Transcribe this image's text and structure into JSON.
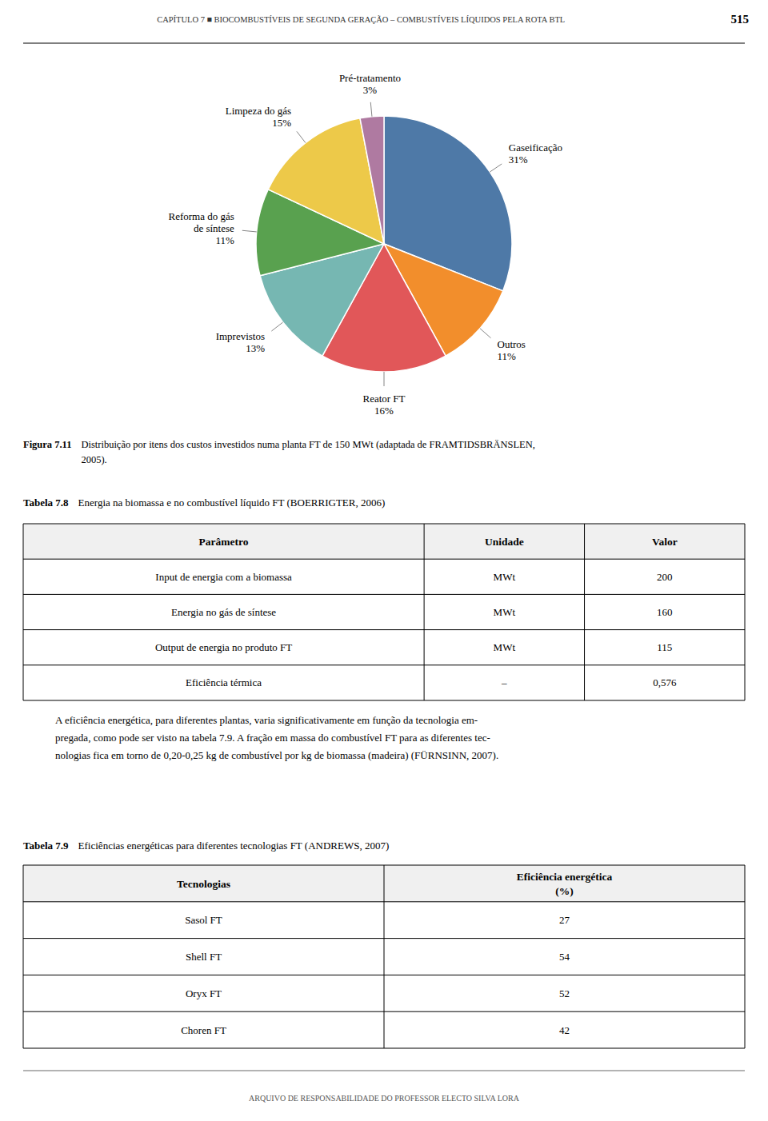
{
  "page_title": "CAPÍTULO 7  ■  BIOCOMBUSTÍVEIS DE SEGUNDA GERAÇÃO – COMBUSTÍVEIS LÍQUIDOS PELA ROTA BTL",
  "page_number": "515",
  "chart_data": {
    "type": "pie",
    "categories": [
      "Gaseificação",
      "Outros",
      "Reator FT",
      "Imprevistos",
      "Reforma do gás\nde síntese",
      "Limpeza do gás",
      "Pré-tratamento"
    ],
    "values": [
      31,
      11,
      16,
      13,
      11,
      15,
      3
    ],
    "value_labels": [
      "31%",
      "11%",
      "16%",
      "13%",
      "11%",
      "15%",
      "3%"
    ],
    "data_labels": true
  },
  "figure_caption": {
    "label": "Figura 7.11",
    "text": "Distribuição por itens dos custos investidos numa planta FT de 150 MWt (adaptada de FRAMTIDSBRÄNSLEN,\n2005)."
  },
  "tables": [
    {
      "label": "Tabela 7.8",
      "title": "Energia na biomassa e no combustível líquido FT (BOERRIGTER, 2006)",
      "headers": [
        "Parâmetro",
        "Unidade",
        "Valor"
      ],
      "rows": [
        [
          "Input de energia com a biomassa",
          "MWt",
          "200"
        ],
        [
          "Energia no gás de síntese",
          "MWt",
          "160"
        ],
        [
          "Output de energia no produto FT",
          "MWt",
          "115"
        ],
        [
          "Eficiência térmica",
          "–",
          "0,576"
        ]
      ]
    },
    {
      "label": "Tabela 7.9",
      "title": "Eficiências energéticas para diferentes tecnologias FT (ANDREWS, 2007)",
      "headers": [
        "Tecnologias",
        "Eficiência energética\n(%)"
      ],
      "rows": [
        [
          "Sasol FT",
          "27"
        ],
        [
          "Shell FT",
          "54"
        ],
        [
          "Oryx FT",
          "52"
        ],
        [
          "Choren FT",
          "42"
        ]
      ]
    }
  ],
  "paragraph": "A eficiência energética, para diferentes plantas, varia significativamente em função da tecnologia em-\npregada, como pode ser visto na tabela 7.9. A fração em massa do combustível FT para as diferentes tec-\nnologias fica em torno de 0,20-0,25 kg de combustível por kg de biomassa (madeira) (FÜRNSINN, 2007).",
  "footer": "ARQUIVO DE RESPONSABILIDADE DO PROFESSOR ELECTO SILVA LORA"
}
